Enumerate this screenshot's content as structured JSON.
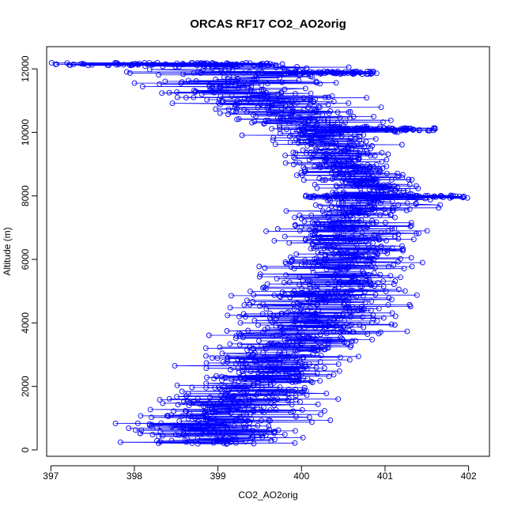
{
  "chart_data": {
    "type": "scatter",
    "title": "ORCAS RF17 CO2_AO2orig",
    "xlabel": "CO2_AO2orig",
    "ylabel": "Altitude (m)",
    "xlim": [
      396.95,
      402.25
    ],
    "ylim": [
      -200,
      12700
    ],
    "x_ticks": [
      "397",
      "398",
      "399",
      "400",
      "401",
      "402"
    ],
    "y_ticks": [
      "0",
      "2000",
      "4000",
      "6000",
      "8000",
      "10000",
      "12000"
    ],
    "grid": false,
    "legend": "none",
    "series_color": "#0000ff",
    "marker": "open-circle",
    "connected": true,
    "profile_envelope": [
      {
        "alt": 180,
        "min": 397.5,
        "max": 400.2
      },
      {
        "alt": 1000,
        "min": 397.6,
        "max": 400.6
      },
      {
        "alt": 2000,
        "min": 398.0,
        "max": 400.8
      },
      {
        "alt": 3000,
        "min": 398.6,
        "max": 401.0
      },
      {
        "alt": 4000,
        "min": 398.8,
        "max": 401.6
      },
      {
        "alt": 5000,
        "min": 398.9,
        "max": 401.6
      },
      {
        "alt": 6000,
        "min": 399.4,
        "max": 401.7
      },
      {
        "alt": 7000,
        "min": 399.4,
        "max": 401.6
      },
      {
        "alt": 8000,
        "min": 399.8,
        "max": 402.1
      },
      {
        "alt": 9000,
        "min": 399.7,
        "max": 401.2
      },
      {
        "alt": 10000,
        "min": 399.0,
        "max": 401.6
      },
      {
        "alt": 11000,
        "min": 398.1,
        "max": 401.1
      },
      {
        "alt": 12200,
        "min": 397.0,
        "max": 400.9
      }
    ],
    "dense_levels": [
      {
        "alt": 12150,
        "min": 397.0,
        "max": 399.7
      },
      {
        "alt": 11880,
        "min": 399.8,
        "max": 400.9
      },
      {
        "alt": 10100,
        "min": 400.4,
        "max": 401.6
      },
      {
        "alt": 7980,
        "min": 400.0,
        "max": 402.0
      }
    ]
  }
}
